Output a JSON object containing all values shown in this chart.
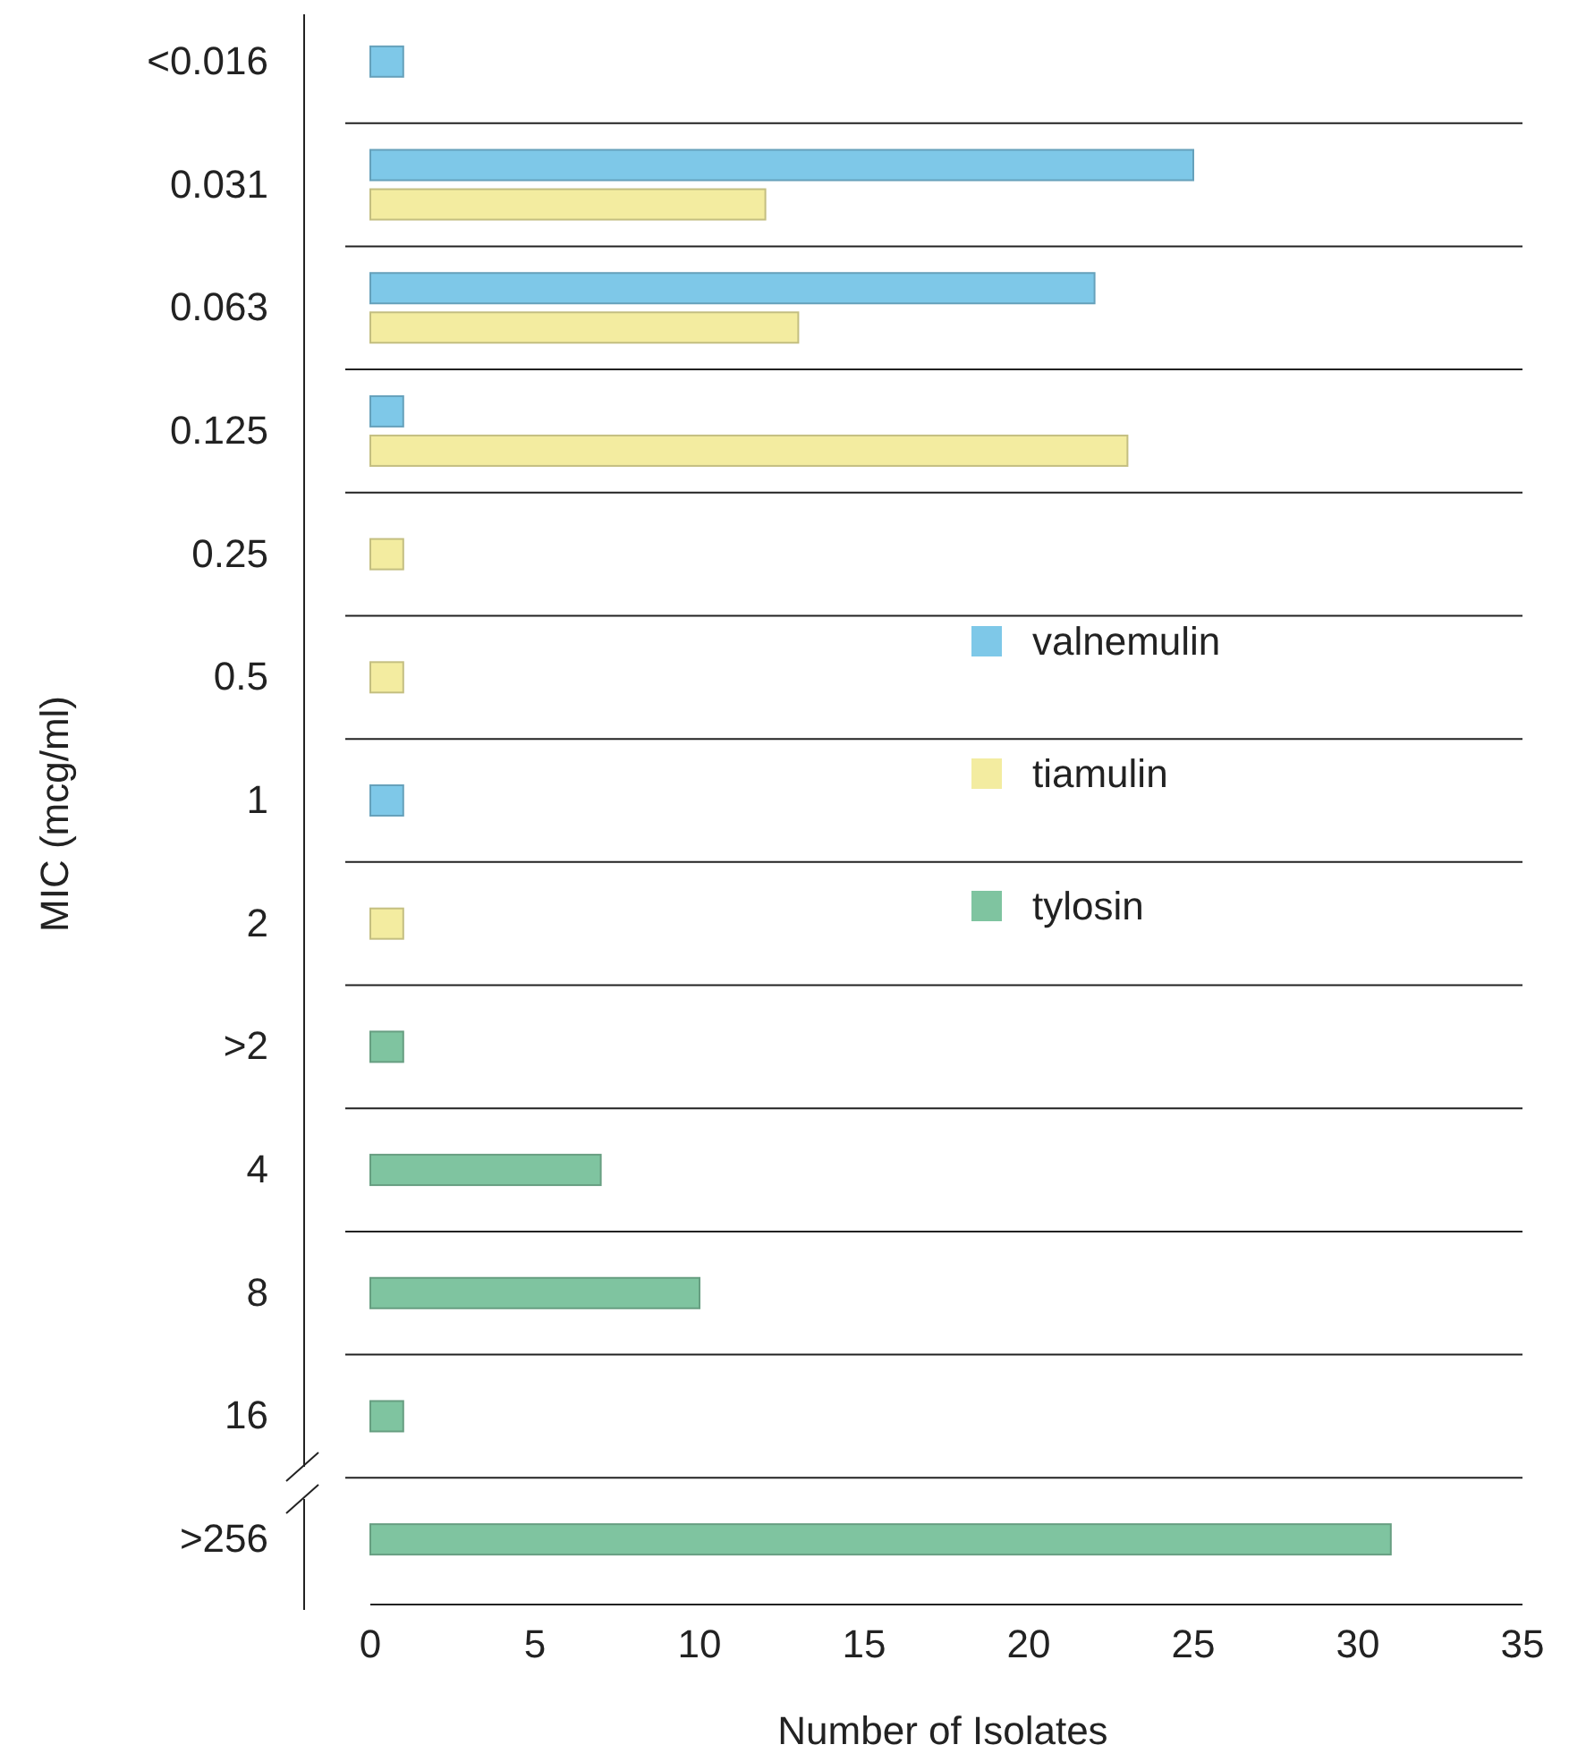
{
  "chart_data": {
    "type": "bar",
    "orientation": "horizontal",
    "xlabel": "Number of Isolates",
    "ylabel": "MIC (mcg/ml)",
    "categories": [
      "<0.016",
      "0.031",
      "0.063",
      "0.125",
      "0.25",
      "0.5",
      "1",
      "2",
      ">2",
      "4",
      "8",
      "16",
      ">256"
    ],
    "series": [
      {
        "name": "valnemulin",
        "color": "#7ec8e8",
        "values": [
          1,
          25,
          22,
          1,
          null,
          null,
          1,
          null,
          null,
          null,
          null,
          null,
          null
        ]
      },
      {
        "name": "tiamulin",
        "color": "#f3eca0",
        "values": [
          null,
          12,
          13,
          23,
          1,
          1,
          null,
          1,
          null,
          null,
          null,
          null,
          null
        ]
      },
      {
        "name": "tylosin",
        "color": "#7fc4a0",
        "values": [
          null,
          null,
          null,
          null,
          null,
          null,
          null,
          null,
          1,
          7,
          10,
          1,
          31
        ]
      }
    ],
    "xlim": [
      0,
      35
    ],
    "xticks": [
      0,
      5,
      10,
      15,
      20,
      25,
      30,
      35
    ],
    "grid": "y",
    "legend": "right"
  }
}
